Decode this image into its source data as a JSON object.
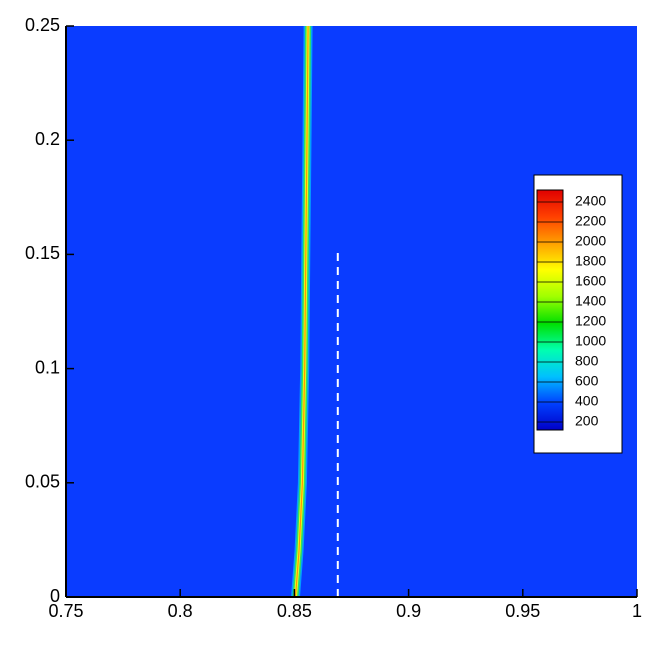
{
  "chart_data": {
    "type": "contour",
    "background_color": "#0a3cff",
    "xlim": [
      0.75,
      1
    ],
    "xticks": [
      0.75,
      0.8,
      0.85,
      0.9,
      0.95,
      1
    ],
    "ylim": [
      0,
      0.25
    ],
    "yticks": [
      0,
      0.05,
      0.1,
      0.15,
      0.2,
      0.25
    ],
    "front": {
      "x": [
        0.8505,
        0.852,
        0.8535,
        0.8545,
        0.855,
        0.8555,
        0.856
      ],
      "y": [
        0,
        0.02,
        0.05,
        0.1,
        0.15,
        0.2,
        0.25
      ]
    },
    "probe": {
      "x": [
        0.869,
        0.869
      ],
      "y": [
        0,
        0.152
      ],
      "color": "#ffffff"
    },
    "colorbar": {
      "clim": [
        120,
        2520
      ],
      "ticks": [
        2400,
        2200,
        2000,
        1800,
        1600,
        1400,
        1200,
        1000,
        800,
        600,
        400,
        200
      ],
      "colors": [
        "#0000c8",
        "#0040ff",
        "#00c0ff",
        "#00ffb0",
        "#00e000",
        "#a0ff00",
        "#ffff00",
        "#ffa000",
        "#ff4000",
        "#e00000"
      ]
    }
  }
}
